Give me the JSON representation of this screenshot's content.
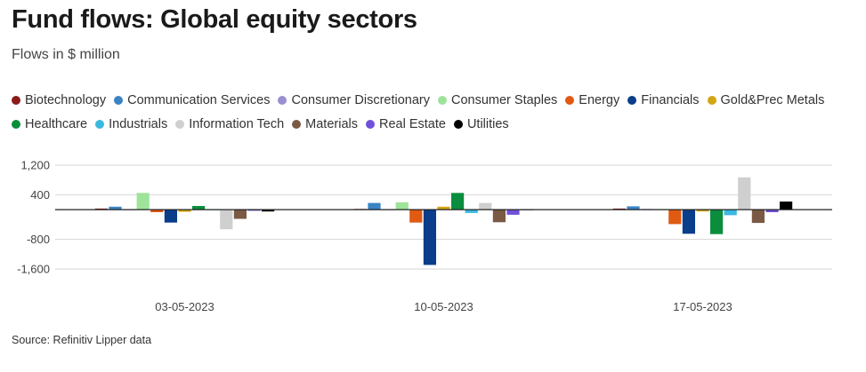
{
  "title": "Fund flows: Global equity sectors",
  "subtitle": "Flows in $ million",
  "source": "Source: Refinitiv Lipper data",
  "colors": {
    "Biotechnology": "#8b1a1a",
    "Communication Services": "#3a84c4",
    "Consumer Discretionary": "#9a8fd0",
    "Consumer Staples": "#9ee39a",
    "Energy": "#e05a12",
    "Financials": "#0a3d8a",
    "Gold&Prec Metals": "#d4a514",
    "Healthcare": "#0a8e3e",
    "Industrials": "#3bb8e0",
    "Information Tech": "#cfcfcf",
    "Materials": "#7a5a45",
    "Real Estate": "#7050d8",
    "Utilities": "#000000"
  },
  "chart_data": {
    "type": "bar",
    "title": "Fund flows: Global equity sectors",
    "ylabel": "Flows in $ million",
    "ylim": [
      -1600,
      1200
    ],
    "yticks": [
      1200,
      400,
      -800,
      -1600
    ],
    "ytick_labels": [
      "1,200",
      "400",
      "-800",
      "-1,600"
    ],
    "categories": [
      "03-05-2023",
      "10-05-2023",
      "17-05-2023"
    ],
    "series": [
      {
        "name": "Biotechnology",
        "values": [
          30,
          20,
          30
        ]
      },
      {
        "name": "Communication Services",
        "values": [
          80,
          180,
          90
        ]
      },
      {
        "name": "Consumer Discretionary",
        "values": [
          10,
          10,
          20
        ]
      },
      {
        "name": "Consumer Staples",
        "values": [
          450,
          200,
          20
        ]
      },
      {
        "name": "Energy",
        "values": [
          -70,
          -350,
          -390
        ]
      },
      {
        "name": "Financials",
        "values": [
          -350,
          -1490,
          -650
        ]
      },
      {
        "name": "Gold&Prec Metals",
        "values": [
          -60,
          80,
          -50
        ]
      },
      {
        "name": "Healthcare",
        "values": [
          100,
          450,
          -660
        ]
      },
      {
        "name": "Industrials",
        "values": [
          10,
          -90,
          -150
        ]
      },
      {
        "name": "Information Tech",
        "values": [
          -530,
          180,
          870
        ]
      },
      {
        "name": "Materials",
        "values": [
          -250,
          -340,
          -360
        ]
      },
      {
        "name": "Real Estate",
        "values": [
          -30,
          -140,
          -70
        ]
      },
      {
        "name": "Utilities",
        "values": [
          -50,
          10,
          220
        ]
      }
    ]
  }
}
